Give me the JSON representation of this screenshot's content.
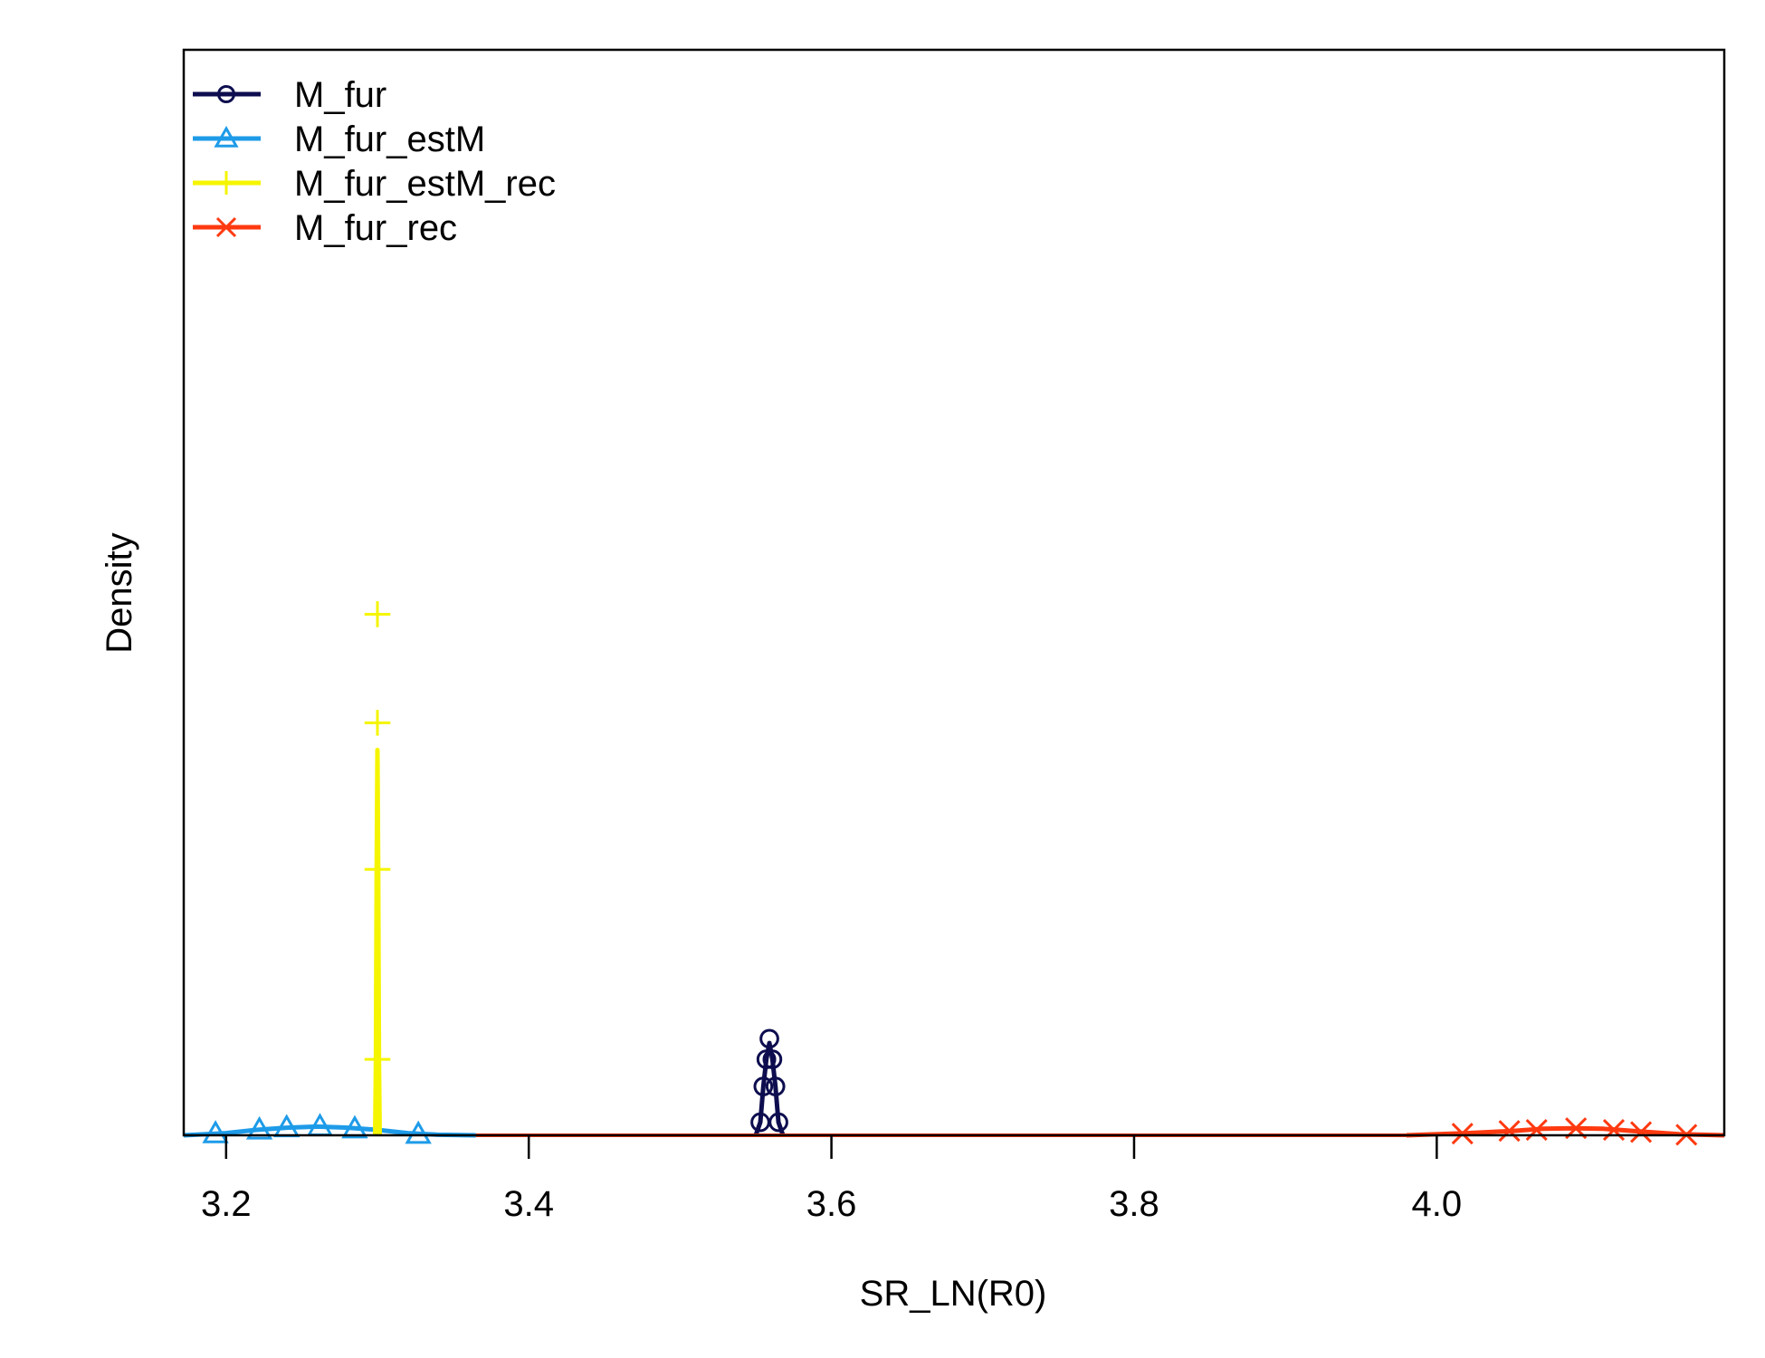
{
  "chart_data": {
    "type": "line",
    "title": "",
    "xlabel": "SR_LN(R0)",
    "ylabel": "Density",
    "xlim": [
      3.172,
      4.19
    ],
    "ylim": [
      0,
      1.0
    ],
    "x_ticks": [
      3.2,
      3.4,
      3.6,
      3.8,
      4.0
    ],
    "x_tick_labels": [
      "3.2",
      "3.4",
      "3.6",
      "3.8",
      "4.0"
    ],
    "y_ticks_shown": false,
    "grid": false,
    "legend": {
      "position": "top-left"
    },
    "series": [
      {
        "name": "M_fur",
        "color": "#0d0d4f",
        "marker": "circle",
        "x": [
          3.55,
          3.553,
          3.555,
          3.557,
          3.559,
          3.561,
          3.563,
          3.565,
          3.568
        ],
        "y": [
          0.0,
          0.012,
          0.045,
          0.07,
          0.085,
          0.07,
          0.045,
          0.012,
          0.0
        ],
        "marker_x": [
          3.553,
          3.555,
          3.557,
          3.559,
          3.561,
          3.563,
          3.565
        ],
        "marker_y": [
          0.012,
          0.045,
          0.07,
          0.089,
          0.07,
          0.045,
          0.012
        ]
      },
      {
        "name": "M_fur_estM",
        "color": "#1e9be8",
        "marker": "triangle",
        "x": [
          3.172,
          3.2,
          3.22,
          3.24,
          3.26,
          3.28,
          3.3,
          3.32,
          3.34,
          3.365
        ],
        "y": [
          0.0,
          0.002,
          0.005,
          0.007,
          0.008,
          0.007,
          0.005,
          0.002,
          0.0005,
          0.0
        ],
        "marker_x": [
          3.193,
          3.222,
          3.24,
          3.262,
          3.285,
          3.327
        ],
        "marker_y": [
          0.0015,
          0.005,
          0.007,
          0.008,
          0.006,
          0.001
        ]
      },
      {
        "name": "M_fur_estM_rec",
        "color": "#f5f500",
        "marker": "plus",
        "x": [
          3.2985,
          3.299,
          3.2995,
          3.3,
          3.3005,
          3.301,
          3.3015
        ],
        "y": [
          0.0,
          0.07,
          0.245,
          0.355,
          0.245,
          0.07,
          0.0
        ],
        "marker_x": [
          3.3,
          3.3,
          3.3,
          3.3
        ],
        "marker_y": [
          0.48,
          0.38,
          0.245,
          0.07
        ]
      },
      {
        "name": "M_fur_rec",
        "color": "#ff3a10",
        "marker": "x",
        "x": [
          3.98,
          4.02,
          4.05,
          4.07,
          4.09,
          4.11,
          4.13,
          4.16,
          4.19
        ],
        "y": [
          0.0,
          0.002,
          0.004,
          0.006,
          0.0065,
          0.006,
          0.004,
          0.001,
          0.0
        ],
        "marker_x": [
          4.017,
          4.048,
          4.066,
          4.092,
          4.117,
          4.135,
          4.165
        ],
        "marker_y": [
          0.0015,
          0.004,
          0.005,
          0.0065,
          0.005,
          0.003,
          0.0005
        ]
      }
    ]
  }
}
